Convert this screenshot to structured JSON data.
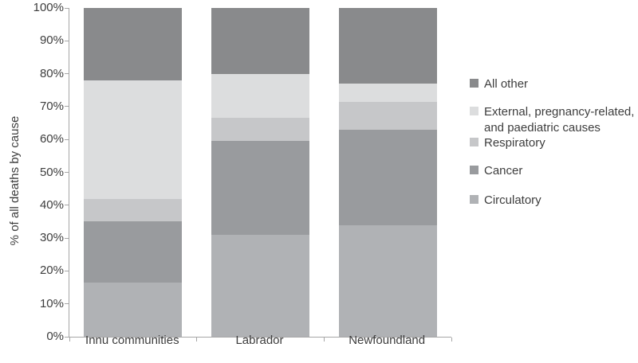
{
  "chart_data": {
    "type": "bar",
    "stacked": true,
    "title": "",
    "xlabel": "",
    "ylabel": "% of all deaths by cause",
    "ylim": [
      0,
      100
    ],
    "ytick_step": 10,
    "ytick_labels": [
      "0%",
      "10%",
      "20%",
      "30%",
      "40%",
      "50%",
      "60%",
      "70%",
      "80%",
      "90%",
      "100%"
    ],
    "grid": false,
    "categories": [
      "Innu communities",
      "Labrador",
      "Newfoundland"
    ],
    "series": [
      {
        "name": "Circulatory",
        "color": "#b0b2b5",
        "values": [
          16.5,
          31,
          34
        ]
      },
      {
        "name": "Cancer",
        "color": "#999b9e",
        "values": [
          18.5,
          28.5,
          29
        ]
      },
      {
        "name": "Respiratory",
        "color": "#c6c7c9",
        "values": [
          7,
          7,
          8.5
        ]
      },
      {
        "name": "External, pregnancy-related, and paediatric causes",
        "color": "#dcddde",
        "values": [
          36,
          13.5,
          5.5
        ]
      },
      {
        "name": "All other",
        "color": "#898a8c",
        "values": [
          22,
          20,
          23
        ]
      }
    ],
    "legend": {
      "position": "right",
      "entries": [
        {
          "label": "All other",
          "color": "#898a8c",
          "lines": [
            "All other"
          ]
        },
        {
          "label": "External, pregnancy-related, and paediatric causes",
          "color": "#dcddde",
          "lines": [
            "External, pregnancy-related,",
            "and paediatric causes"
          ]
        },
        {
          "label": "Respiratory",
          "color": "#c6c7c9",
          "lines": [
            "Respiratory"
          ]
        },
        {
          "label": "Cancer",
          "color": "#999b9e",
          "lines": [
            "Cancer"
          ]
        },
        {
          "label": "Circulatory",
          "color": "#b0b2b5",
          "lines": [
            "Circulatory"
          ]
        }
      ]
    }
  }
}
